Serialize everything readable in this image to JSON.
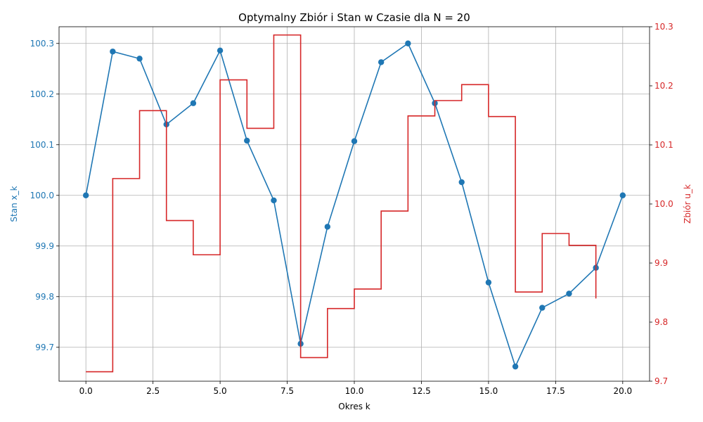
{
  "chart_data": {
    "type": "line",
    "title": "Optymalny Zbiór i Stan w Czasie dla N = 20",
    "xlabel": "Okres k",
    "ylabel_left": "Stan x_k",
    "ylabel_right": "Zbiór u_k",
    "xlim": [
      -1,
      21
    ],
    "ylim_left": [
      99.633,
      100.333
    ],
    "ylim_right": [
      9.7,
      10.3
    ],
    "x_ticks": [
      "0.0",
      "2.5",
      "5.0",
      "7.5",
      "10.0",
      "12.5",
      "15.0",
      "17.5",
      "20.0"
    ],
    "y_ticks_left": [
      "99.7",
      "99.8",
      "99.9",
      "100.0",
      "100.1",
      "100.2",
      "100.3"
    ],
    "y_ticks_right": [
      "9.7",
      "9.8",
      "9.9",
      "10.0",
      "10.1",
      "10.2",
      "10.3"
    ],
    "grid": true,
    "series": [
      {
        "axis": "left",
        "style": "line-marker",
        "color": "#1f77b4",
        "x": [
          0,
          1,
          2,
          3,
          4,
          5,
          6,
          7,
          8,
          9,
          10,
          11,
          12,
          13,
          14,
          15,
          16,
          17,
          18,
          19,
          20
        ],
        "values": [
          100.0,
          100.284,
          100.27,
          100.14,
          100.182,
          100.286,
          100.108,
          99.99,
          99.707,
          99.938,
          100.107,
          100.263,
          100.3,
          100.182,
          100.026,
          99.828,
          99.662,
          99.778,
          99.806,
          99.857,
          100.0
        ]
      },
      {
        "axis": "right",
        "style": "step-post",
        "color": "#d62728",
        "x": [
          0,
          1,
          2,
          3,
          4,
          5,
          6,
          7,
          8,
          9,
          10,
          11,
          12,
          13,
          14,
          15,
          16,
          17,
          18,
          19
        ],
        "values": [
          9.716,
          10.043,
          10.158,
          9.972,
          9.914,
          10.21,
          10.128,
          10.286,
          9.74,
          9.823,
          9.856,
          9.988,
          10.149,
          10.175,
          10.202,
          10.148,
          9.851,
          9.95,
          9.93,
          9.84
        ]
      }
    ]
  }
}
